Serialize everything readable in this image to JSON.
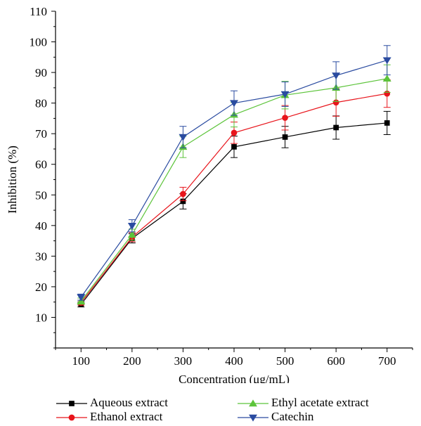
{
  "chart_data": {
    "type": "line",
    "xlabel": "Concentration (μg/mL)",
    "ylabel": "Inhibition (%)",
    "x": [
      100,
      200,
      300,
      400,
      500,
      600,
      700
    ],
    "xlim": [
      50,
      750
    ],
    "ylim": [
      0,
      110
    ],
    "yticks": [
      10,
      20,
      30,
      40,
      50,
      60,
      70,
      80,
      90,
      100,
      110
    ],
    "xticks": [
      100,
      200,
      300,
      400,
      500,
      600,
      700
    ],
    "grid": false,
    "legend_position": "bottom",
    "series": [
      {
        "name": "Aqueous extract",
        "color": "#000000",
        "marker": "square",
        "values": [
          14.2,
          35.8,
          47.9,
          65.7,
          68.9,
          72.0,
          73.5
        ],
        "errors": [
          0.8,
          1.5,
          2.5,
          3.5,
          3.5,
          3.8,
          3.8
        ]
      },
      {
        "name": "Ethanol extract",
        "color": "#e8141b",
        "marker": "circle",
        "values": [
          14.8,
          36.2,
          50.3,
          70.3,
          75.2,
          80.2,
          83.1
        ],
        "errors": [
          0.8,
          1.5,
          2.2,
          3.5,
          4.0,
          4.5,
          4.5
        ]
      },
      {
        "name": "Ethyl acetate extract",
        "color": "#5cc43a",
        "marker": "triangle-up",
        "values": [
          15.3,
          37.0,
          65.7,
          76.2,
          82.6,
          85.0,
          88.0
        ],
        "errors": [
          1.0,
          1.8,
          3.5,
          4.0,
          4.5,
          4.5,
          4.5
        ]
      },
      {
        "name": "Catechin",
        "color": "#2a4ba0",
        "marker": "triangle-down",
        "values": [
          16.6,
          39.9,
          68.9,
          80.0,
          82.9,
          89.0,
          94.0
        ],
        "errors": [
          1.0,
          2.0,
          3.5,
          4.0,
          4.0,
          4.5,
          4.8
        ]
      }
    ]
  }
}
